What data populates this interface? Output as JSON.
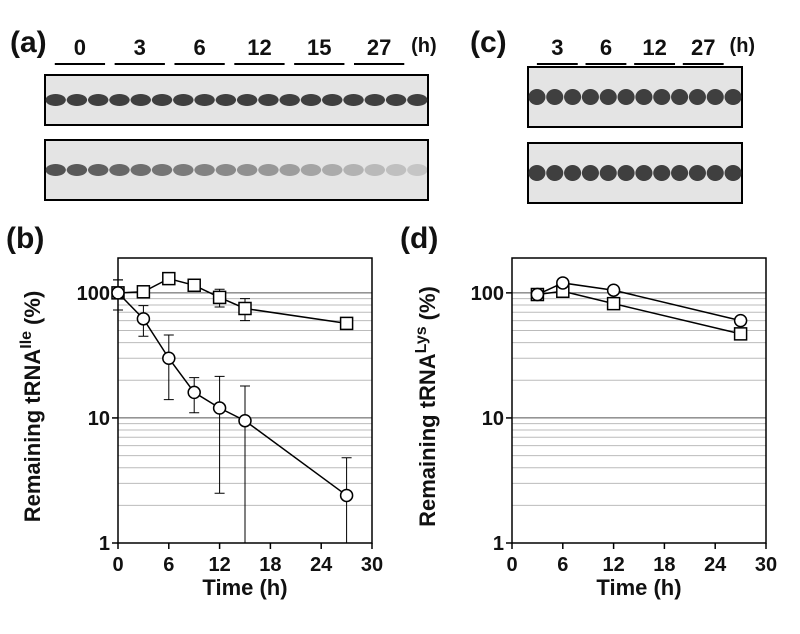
{
  "gels": [
    {
      "label": "(a)",
      "lanes": [
        "0",
        "3",
        "6",
        "12",
        "15",
        "27"
      ],
      "unit": "(h)"
    },
    {
      "label": "(c)",
      "lanes": [
        "3",
        "6",
        "12",
        "27"
      ],
      "unit": "(h)"
    }
  ],
  "chart_data": [
    {
      "type": "line",
      "label": "(b)",
      "ylabel": "Remaining tRNA",
      "ylabel_sup": "Ile",
      "ylabel_unit": "(%)",
      "xlabel": "Time (h)",
      "log_y": true,
      "grid": true,
      "xlim": [
        0,
        30
      ],
      "xticks": [
        0,
        6,
        12,
        18,
        24,
        30
      ],
      "ylim": [
        1,
        190
      ],
      "yticks": [
        1,
        10,
        100
      ],
      "yminorticks": [
        2,
        3,
        4,
        5,
        6,
        7,
        8,
        9,
        20,
        30,
        40,
        50,
        60,
        70,
        80,
        90
      ],
      "series": [
        {
          "marker": "square",
          "color": "#000000",
          "x": [
            0,
            3,
            6,
            9,
            12,
            15,
            27
          ],
          "values": [
            100,
            102,
            130,
            115,
            92,
            75,
            57
          ],
          "errors": [
            27,
            null,
            null,
            null,
            15,
            15,
            null
          ]
        },
        {
          "marker": "circle",
          "color": "#000000",
          "x": [
            0,
            3,
            6,
            9,
            12,
            15,
            27
          ],
          "values": [
            100,
            62,
            30,
            16,
            12,
            9.5,
            2.4
          ],
          "errors": [
            27,
            17,
            16,
            5,
            9.5,
            8.5,
            2.4
          ]
        }
      ]
    },
    {
      "type": "line",
      "label": "(d)",
      "ylabel": "Remaining tRNA",
      "ylabel_sup": "Lys",
      "ylabel_unit": "(%)",
      "xlabel": "Time (h)",
      "log_y": true,
      "grid": true,
      "xlim": [
        0,
        30
      ],
      "xticks": [
        0,
        6,
        12,
        18,
        24,
        30
      ],
      "ylim": [
        1,
        190
      ],
      "yticks": [
        1,
        10,
        100
      ],
      "yminorticks": [
        2,
        3,
        4,
        5,
        6,
        7,
        8,
        9,
        20,
        30,
        40,
        50,
        60,
        70,
        80,
        90
      ],
      "series": [
        {
          "marker": "square",
          "color": "#000000",
          "x": [
            3,
            6,
            12,
            27
          ],
          "values": [
            97,
            103,
            82,
            47
          ]
        },
        {
          "marker": "circle",
          "color": "#000000",
          "x": [
            3,
            6,
            12,
            27
          ],
          "values": [
            97,
            120,
            105,
            60
          ]
        }
      ]
    }
  ]
}
